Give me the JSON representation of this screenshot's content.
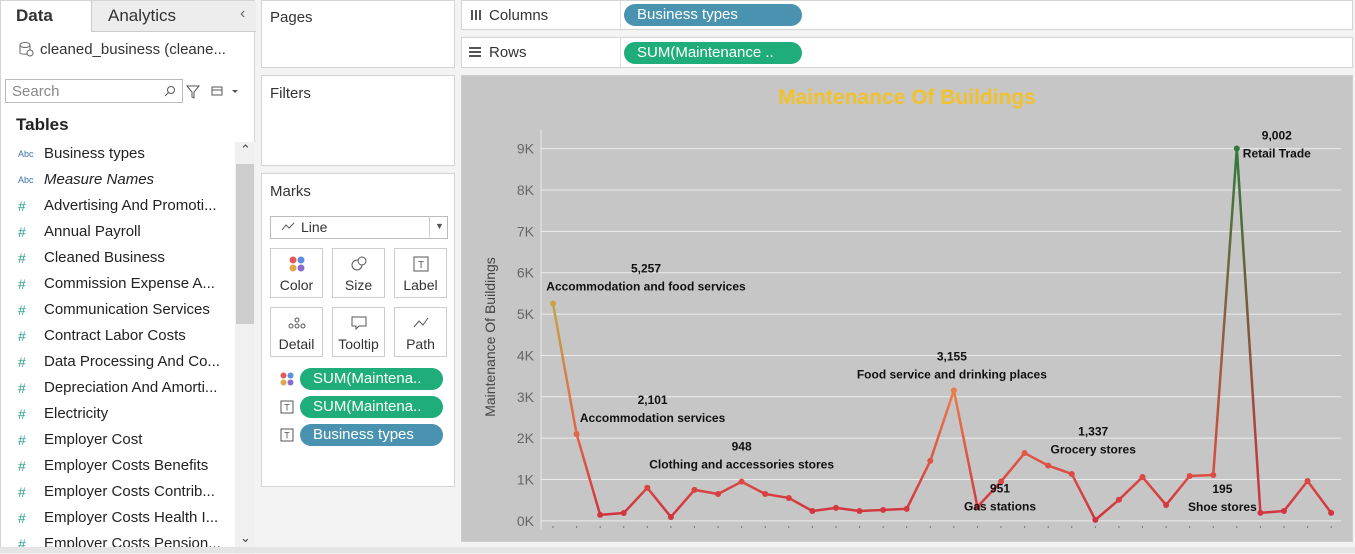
{
  "data_pane": {
    "tabs": [
      "Data",
      "Analytics"
    ],
    "datasource": "cleaned_business (cleane...",
    "search_placeholder": "Search",
    "tables_heading": "Tables",
    "fields": [
      {
        "icon": "Abc",
        "name": "Business types"
      },
      {
        "icon": "Abc",
        "name": "Measure Names"
      },
      {
        "icon": "#",
        "name": "Advertising And Promoti..."
      },
      {
        "icon": "#",
        "name": "Annual Payroll"
      },
      {
        "icon": "#",
        "name": "Cleaned Business"
      },
      {
        "icon": "#",
        "name": "Commission Expense A..."
      },
      {
        "icon": "#",
        "name": "Communication Services"
      },
      {
        "icon": "#",
        "name": "Contract Labor Costs"
      },
      {
        "icon": "#",
        "name": "Data Processing And Co..."
      },
      {
        "icon": "#",
        "name": "Depreciation And Amorti..."
      },
      {
        "icon": "#",
        "name": "Electricity"
      },
      {
        "icon": "#",
        "name": "Employer Cost"
      },
      {
        "icon": "#",
        "name": "Employer Costs Benefits"
      },
      {
        "icon": "#",
        "name": "Employer Costs Contrib..."
      },
      {
        "icon": "#",
        "name": "Employer Costs Health I..."
      },
      {
        "icon": "#",
        "name": "Employer Costs Pension..."
      }
    ]
  },
  "shelves": {
    "pages": "Pages",
    "filters": "Filters",
    "columns_label": "Columns",
    "columns_pill": "Business types",
    "rows_label": "Rows",
    "rows_pill": "SUM(Maintenance .."
  },
  "marks": {
    "title": "Marks",
    "mark_type": "Line",
    "buttons": [
      "Color",
      "Size",
      "Label",
      "Detail",
      "Tooltip",
      "Path"
    ],
    "pills": [
      {
        "icon": "color",
        "text": "SUM(Maintena.."
      },
      {
        "icon": "label",
        "text": "SUM(Maintena.."
      },
      {
        "icon": "label",
        "text": "Business types"
      }
    ]
  },
  "chart_data": {
    "type": "line",
    "title": "Maintenance Of Buildings",
    "y_label": "Maintenance Of Buildings",
    "categories": [
      "Accommodation and food services",
      "Accommodation services",
      null,
      null,
      null,
      null,
      null,
      null,
      "Clothing and accessories stores",
      null,
      null,
      null,
      null,
      null,
      null,
      null,
      null,
      "Food service and drinking places",
      null,
      "Gas stations",
      null,
      "Grocery stores",
      null,
      null,
      null,
      null,
      null,
      null,
      null,
      "Retail Trade",
      "Shoe stores",
      null,
      null,
      null
    ],
    "values": [
      5257,
      2101,
      145,
      190,
      800,
      95,
      750,
      650,
      948,
      650,
      555,
      240,
      315,
      240,
      265,
      290,
      1450,
      3155,
      340,
      951,
      1640,
      1337,
      1135,
      25,
      510,
      1060,
      385,
      1085,
      1110,
      9002,
      195,
      240,
      965,
      195
    ],
    "value_labels": [
      "5,257",
      "2,101",
      null,
      null,
      null,
      null,
      null,
      null,
      "948",
      null,
      null,
      null,
      null,
      null,
      null,
      null,
      null,
      "3,155",
      null,
      "951",
      null,
      "1,337",
      null,
      null,
      null,
      null,
      null,
      null,
      null,
      "9,002",
      "195",
      null,
      null,
      null
    ],
    "ylim": [
      -220,
      9450
    ],
    "yticks": [
      {
        "value": 0,
        "label": "0K"
      },
      {
        "value": 1000,
        "label": "1K"
      },
      {
        "value": 2000,
        "label": "2K"
      },
      {
        "value": 3000,
        "label": "3K"
      },
      {
        "value": 4000,
        "label": "4K"
      },
      {
        "value": 5000,
        "label": "5K"
      },
      {
        "value": 6000,
        "label": "6K"
      },
      {
        "value": 7000,
        "label": "7K"
      },
      {
        "value": 8000,
        "label": "8K"
      },
      {
        "value": 9000,
        "label": "9K"
      }
    ],
    "grid": true,
    "color_stops": [
      "#d1313e",
      "#ec7a4a",
      "#b9b243",
      "#2f7a3a"
    ],
    "title_color": "#f2c12e"
  }
}
